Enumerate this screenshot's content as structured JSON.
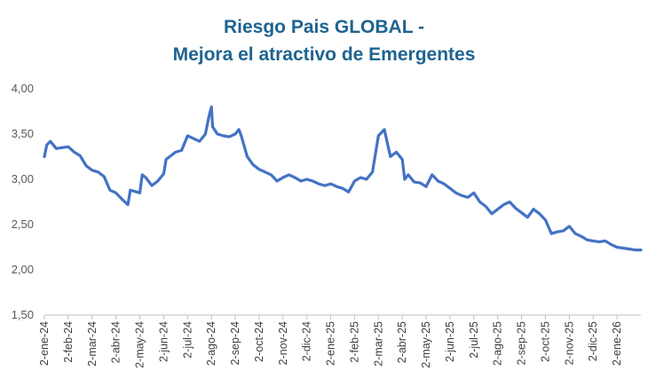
{
  "chart_data": {
    "type": "line",
    "title_line_1": "Riesgo Pais GLOBAL -",
    "title_line_2": "Mejora el atractivo de Emergentes",
    "xlabel": "",
    "ylabel": "",
    "ylim": [
      1.5,
      4.0
    ],
    "y_ticks": [
      "1,50",
      "2,00",
      "2,50",
      "3,00",
      "3,50",
      "4,00"
    ],
    "y_tick_values": [
      1.5,
      2.0,
      2.5,
      3.0,
      3.5,
      4.0
    ],
    "x_ticks": [
      "2-ene-24",
      "2-feb-24",
      "2-mar-24",
      "2-abr-24",
      "2-may-24",
      "2-jun-24",
      "2-jul-24",
      "2-ago-24",
      "2-sep-24",
      "2-oct-24",
      "2-nov-24",
      "2-dic-24",
      "2-ene-25",
      "2-feb-25",
      "2-mar-25",
      "2-abr-25",
      "2-may-25",
      "2-jun-25",
      "2-jul-25",
      "2-ago-25",
      "2-sep-25",
      "2-oct-25",
      "2-nov-25",
      "2-dic-25",
      "2-ene-26"
    ],
    "x_range_months": [
      0,
      25.0
    ],
    "grid": false,
    "legend": "none",
    "line_color": "#4472c4",
    "series": [
      {
        "name": "Riesgo Pais GLOBAL",
        "x_months": [
          0,
          0.1,
          0.25,
          0.5,
          0.75,
          1.0,
          1.25,
          1.5,
          1.75,
          2.0,
          2.25,
          2.5,
          2.75,
          3.0,
          3.25,
          3.5,
          3.6,
          3.75,
          4.0,
          4.1,
          4.25,
          4.5,
          4.75,
          5.0,
          5.1,
          5.25,
          5.5,
          5.75,
          6.0,
          6.25,
          6.5,
          6.75,
          6.9,
          7.0,
          7.05,
          7.25,
          7.5,
          7.75,
          8.0,
          8.15,
          8.25,
          8.5,
          8.75,
          9.0,
          9.25,
          9.5,
          9.75,
          10.0,
          10.25,
          10.5,
          10.75,
          11.0,
          11.25,
          11.5,
          11.75,
          12.0,
          12.25,
          12.5,
          12.75,
          13.0,
          13.25,
          13.5,
          13.75,
          14.0,
          14.25,
          14.5,
          14.75,
          15.0,
          15.1,
          15.25,
          15.5,
          15.75,
          16.0,
          16.25,
          16.5,
          16.75,
          17.0,
          17.25,
          17.5,
          17.75,
          18.0,
          18.25,
          18.5,
          18.75,
          19.0,
          19.25,
          19.5,
          19.75,
          20.0,
          20.25,
          20.5,
          20.75,
          21.0,
          21.25,
          21.5,
          21.75,
          22.0,
          22.25,
          22.5,
          22.75,
          23.0,
          23.25,
          23.5,
          23.75,
          24.0,
          24.25,
          24.5,
          24.75,
          25.0
        ],
        "values": [
          3.25,
          3.38,
          3.42,
          3.34,
          3.35,
          3.36,
          3.3,
          3.26,
          3.15,
          3.1,
          3.08,
          3.03,
          2.88,
          2.85,
          2.78,
          2.72,
          2.88,
          2.87,
          2.85,
          3.05,
          3.02,
          2.93,
          2.98,
          3.06,
          3.22,
          3.25,
          3.3,
          3.32,
          3.48,
          3.45,
          3.42,
          3.5,
          3.7,
          3.8,
          3.58,
          3.5,
          3.48,
          3.47,
          3.5,
          3.55,
          3.48,
          3.25,
          3.16,
          3.11,
          3.08,
          3.05,
          2.98,
          3.02,
          3.05,
          3.02,
          2.98,
          3.0,
          2.98,
          2.95,
          2.93,
          2.95,
          2.92,
          2.9,
          2.86,
          2.98,
          3.02,
          3.0,
          3.08,
          3.48,
          3.55,
          3.25,
          3.3,
          3.22,
          3.0,
          3.05,
          2.97,
          2.96,
          2.92,
          3.05,
          2.98,
          2.95,
          2.9,
          2.85,
          2.82,
          2.8,
          2.85,
          2.75,
          2.7,
          2.62,
          2.67,
          2.72,
          2.75,
          2.68,
          2.63,
          2.58,
          2.67,
          2.62,
          2.55,
          2.4,
          2.42,
          2.43,
          2.48,
          2.4,
          2.37,
          2.33,
          2.32,
          2.31,
          2.32,
          2.28,
          2.25,
          2.24,
          2.23,
          2.22,
          2.22
        ]
      }
    ]
  }
}
